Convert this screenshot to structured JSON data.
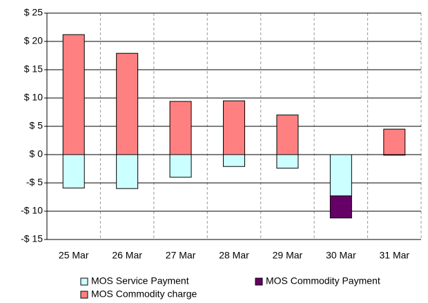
{
  "chart_data": {
    "type": "bar",
    "stacked": true,
    "categories": [
      "25 Mar",
      "26 Mar",
      "27 Mar",
      "28 Mar",
      "29 Mar",
      "30 Mar",
      "31 Mar"
    ],
    "series": [
      {
        "name": "MOS Service Payment",
        "color": "#ccffff",
        "values": [
          -5.9,
          -6.0,
          -4.0,
          -2.1,
          -2.4,
          -7.3,
          -0.1
        ]
      },
      {
        "name": "MOS Commodity Payment",
        "color": "#660066",
        "values": [
          0,
          0,
          0,
          0,
          0,
          -3.9,
          0
        ]
      },
      {
        "name": "MOS Commodity charge",
        "color": "#ff8080",
        "values": [
          21.2,
          17.9,
          9.4,
          9.5,
          7.0,
          0,
          4.5
        ]
      }
    ],
    "ylim": [
      -15,
      25
    ],
    "yticks": [
      {
        "value": -15,
        "label": "-$ 15"
      },
      {
        "value": -10,
        "label": "-$ 10"
      },
      {
        "value": -5,
        "label": "-$ 5"
      },
      {
        "value": 0,
        "label": "$ 0"
      },
      {
        "value": 5,
        "label": "$ 5"
      },
      {
        "value": 10,
        "label": "$ 10"
      },
      {
        "value": 15,
        "label": "$ 15"
      },
      {
        "value": 20,
        "label": "$ 20"
      },
      {
        "value": 25,
        "label": "$ 25"
      }
    ],
    "grid": true,
    "legend": "bottom"
  }
}
